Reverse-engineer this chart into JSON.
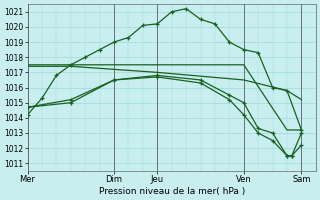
{
  "xlabel": "Pression niveau de la mer( hPa )",
  "ylim": [
    1010.5,
    1021.5
  ],
  "yticks": [
    1011,
    1012,
    1013,
    1014,
    1015,
    1016,
    1017,
    1018,
    1019,
    1020,
    1021
  ],
  "bg_color": "#c8eef0",
  "grid_color": "#a0d8d8",
  "line_color": "#1a6020",
  "vline_color": "#606060",
  "xtick_labels": [
    "Mer",
    "Dim",
    "Jeu",
    "Ven",
    "Sam"
  ],
  "xtick_positions": [
    0,
    36,
    54,
    90,
    114
  ],
  "vlines": [
    0,
    36,
    54,
    90,
    114
  ],
  "xlim": [
    0,
    120
  ],
  "series1_marked": {
    "x": [
      0,
      6,
      12,
      18,
      24,
      30,
      36,
      42,
      48,
      54,
      60,
      66,
      72,
      78,
      84,
      90,
      96,
      102,
      108,
      114
    ],
    "y": [
      1014.2,
      1015.3,
      1016.8,
      1017.5,
      1018.0,
      1018.5,
      1019.0,
      1019.3,
      1020.1,
      1020.2,
      1021.0,
      1021.2,
      1020.5,
      1020.2,
      1019.0,
      1018.5,
      1018.3,
      1016.0,
      1015.8,
      1013.2
    ]
  },
  "series2_flat": {
    "x": [
      0,
      18,
      36,
      54,
      72,
      90,
      108,
      114
    ],
    "y": [
      1017.5,
      1017.5,
      1017.5,
      1017.5,
      1017.5,
      1017.5,
      1013.2,
      1013.2
    ]
  },
  "series3_slight_decline": {
    "x": [
      0,
      18,
      36,
      54,
      90,
      108,
      114
    ],
    "y": [
      1017.4,
      1017.4,
      1017.2,
      1017.0,
      1016.5,
      1015.8,
      1015.2
    ]
  },
  "series4_marked": {
    "x": [
      0,
      18,
      36,
      54,
      72,
      84,
      90,
      96,
      102,
      108,
      110,
      114
    ],
    "y": [
      1014.7,
      1015.2,
      1016.5,
      1016.8,
      1016.5,
      1015.5,
      1015.0,
      1013.3,
      1013.0,
      1011.5,
      1011.5,
      1013.0
    ]
  },
  "series5_marked": {
    "x": [
      0,
      18,
      36,
      54,
      72,
      84,
      90,
      96,
      102,
      108,
      110,
      114
    ],
    "y": [
      1014.7,
      1015.0,
      1016.5,
      1016.7,
      1016.3,
      1015.2,
      1014.2,
      1013.0,
      1012.5,
      1011.5,
      1011.5,
      1012.2
    ]
  }
}
